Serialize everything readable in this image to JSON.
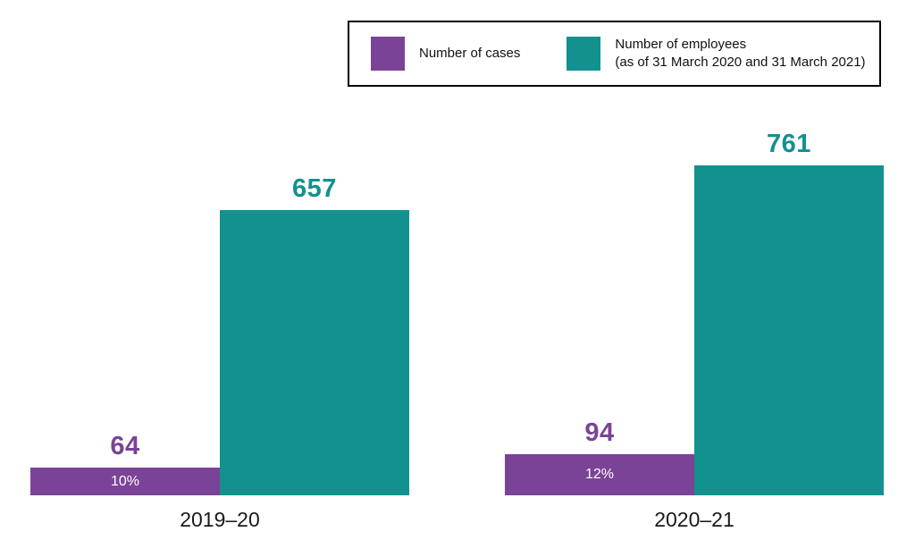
{
  "page": {
    "background": "#ffffff"
  },
  "legend": {
    "items": [
      {
        "label": "Number of cases",
        "color": "#7B4397"
      },
      {
        "label": "Number of employees\n(as of 31 March 2020 and 31 March 2021)",
        "color": "#12918F"
      }
    ]
  },
  "chart_data": {
    "type": "bar",
    "categories": [
      "2019–20",
      "2020–21"
    ],
    "series": [
      {
        "name": "Number of cases",
        "color": "#7B4397",
        "values": [
          64,
          94
        ],
        "bar_labels": [
          "10%",
          "12%"
        ]
      },
      {
        "name": "Number of employees (as of 31 March 2020 and 31 March 2021)",
        "color": "#12918F",
        "values": [
          657,
          761
        ]
      }
    ],
    "title": "",
    "xlabel": "",
    "ylabel": "",
    "grid": false,
    "axes_visible": false,
    "legend_position": "top-right",
    "value_labels": "above-bars"
  }
}
